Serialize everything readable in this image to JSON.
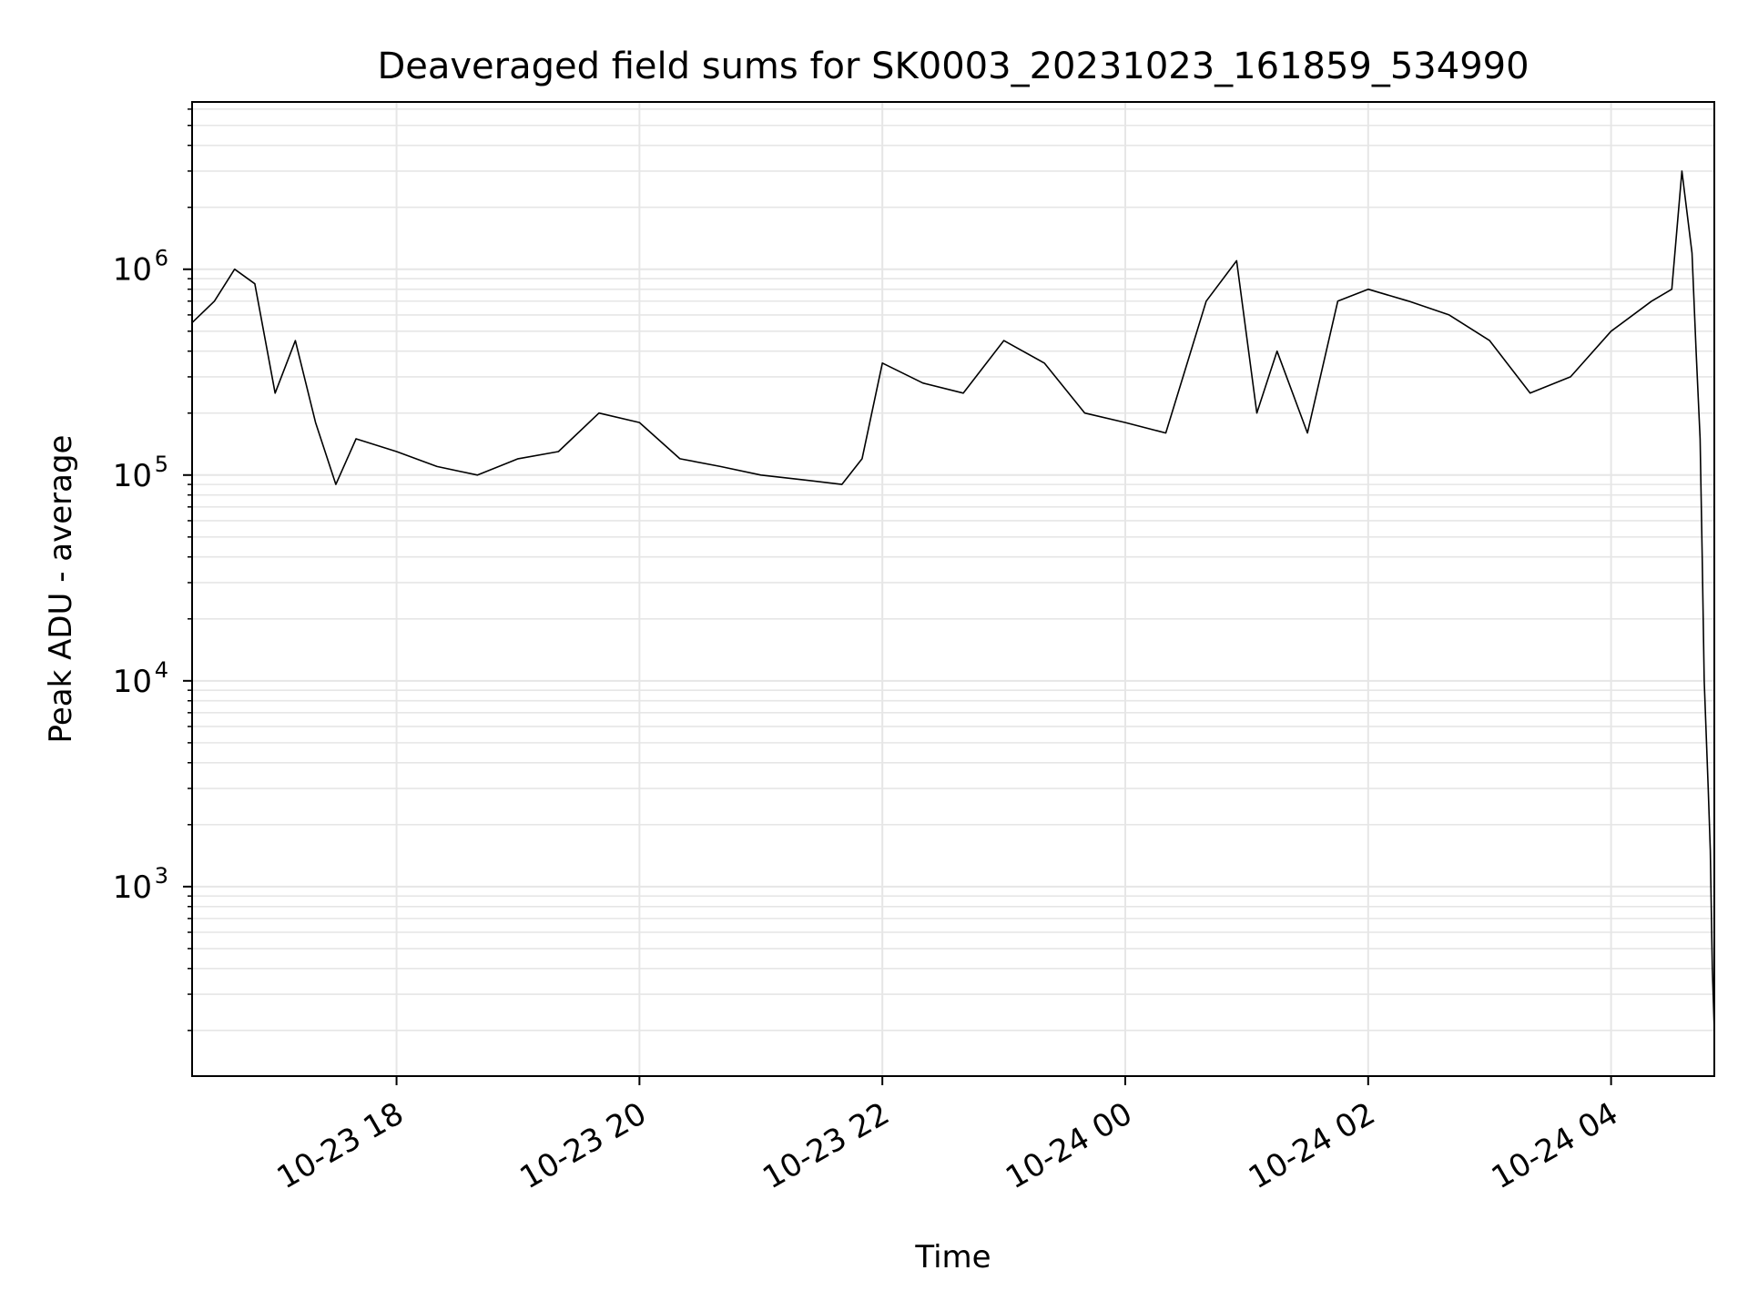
{
  "chart_data": {
    "type": "line",
    "title": "Deaveraged field sums for SK0003_20231023_161859_534990",
    "xlabel": "Time",
    "ylabel": "Peak ADU - average",
    "yscale": "log",
    "ylim": [
      120,
      6500000
    ],
    "xlim": [
      "2023-10-23 16:19",
      "2023-10-24 04:51"
    ],
    "grid": true,
    "line_color": "#000000",
    "x_ticks": [
      {
        "t": "2023-10-23 18:00",
        "label": "10-23 18"
      },
      {
        "t": "2023-10-23 20:00",
        "label": "10-23 20"
      },
      {
        "t": "2023-10-23 22:00",
        "label": "10-23 22"
      },
      {
        "t": "2023-10-24 00:00",
        "label": "10-24 00"
      },
      {
        "t": "2023-10-24 02:00",
        "label": "10-24 02"
      },
      {
        "t": "2023-10-24 04:00",
        "label": "10-24 04"
      }
    ],
    "y_ticks": [
      {
        "value": 1000,
        "base": "10",
        "exp": "3"
      },
      {
        "value": 10000,
        "base": "10",
        "exp": "4"
      },
      {
        "value": 100000,
        "base": "10",
        "exp": "5"
      },
      {
        "value": 1000000,
        "base": "10",
        "exp": "6"
      }
    ],
    "series": [
      {
        "points": [
          [
            "2023-10-23 16:19",
            550000
          ],
          [
            "2023-10-23 16:30",
            700000
          ],
          [
            "2023-10-23 16:40",
            1000000
          ],
          [
            "2023-10-23 16:50",
            850000
          ],
          [
            "2023-10-23 17:00",
            250000
          ],
          [
            "2023-10-23 17:10",
            450000
          ],
          [
            "2023-10-23 17:20",
            180000
          ],
          [
            "2023-10-23 17:30",
            90000
          ],
          [
            "2023-10-23 17:40",
            150000
          ],
          [
            "2023-10-23 18:00",
            130000
          ],
          [
            "2023-10-23 18:20",
            110000
          ],
          [
            "2023-10-23 18:40",
            100000
          ],
          [
            "2023-10-23 19:00",
            120000
          ],
          [
            "2023-10-23 19:20",
            130000
          ],
          [
            "2023-10-23 19:40",
            200000
          ],
          [
            "2023-10-23 20:00",
            180000
          ],
          [
            "2023-10-23 20:20",
            120000
          ],
          [
            "2023-10-23 20:40",
            110000
          ],
          [
            "2023-10-23 21:00",
            100000
          ],
          [
            "2023-10-23 21:20",
            95000
          ],
          [
            "2023-10-23 21:40",
            90000
          ],
          [
            "2023-10-23 21:50",
            120000
          ],
          [
            "2023-10-23 22:00",
            350000
          ],
          [
            "2023-10-23 22:20",
            280000
          ],
          [
            "2023-10-23 22:40",
            250000
          ],
          [
            "2023-10-23 23:00",
            450000
          ],
          [
            "2023-10-23 23:20",
            350000
          ],
          [
            "2023-10-23 23:40",
            200000
          ],
          [
            "2023-10-24 00:00",
            180000
          ],
          [
            "2023-10-24 00:20",
            160000
          ],
          [
            "2023-10-24 00:40",
            700000
          ],
          [
            "2023-10-24 00:55",
            1100000
          ],
          [
            "2023-10-24 01:05",
            200000
          ],
          [
            "2023-10-24 01:15",
            400000
          ],
          [
            "2023-10-24 01:30",
            160000
          ],
          [
            "2023-10-24 01:45",
            700000
          ],
          [
            "2023-10-24 02:00",
            800000
          ],
          [
            "2023-10-24 02:20",
            700000
          ],
          [
            "2023-10-24 02:40",
            600000
          ],
          [
            "2023-10-24 03:00",
            450000
          ],
          [
            "2023-10-24 03:20",
            250000
          ],
          [
            "2023-10-24 03:40",
            300000
          ],
          [
            "2023-10-24 04:00",
            500000
          ],
          [
            "2023-10-24 04:20",
            700000
          ],
          [
            "2023-10-24 04:30",
            800000
          ],
          [
            "2023-10-24 04:35",
            3000000
          ],
          [
            "2023-10-24 04:40",
            1200000
          ],
          [
            "2023-10-24 04:42",
            400000
          ],
          [
            "2023-10-24 04:44",
            150000
          ],
          [
            "2023-10-24 04:45",
            40000
          ],
          [
            "2023-10-24 04:46",
            10000
          ],
          [
            "2023-10-24 04:48",
            3000
          ],
          [
            "2023-10-24 04:49",
            1500
          ],
          [
            "2023-10-24 04:50",
            400
          ],
          [
            "2023-10-24 04:51",
            200
          ]
        ]
      }
    ]
  }
}
